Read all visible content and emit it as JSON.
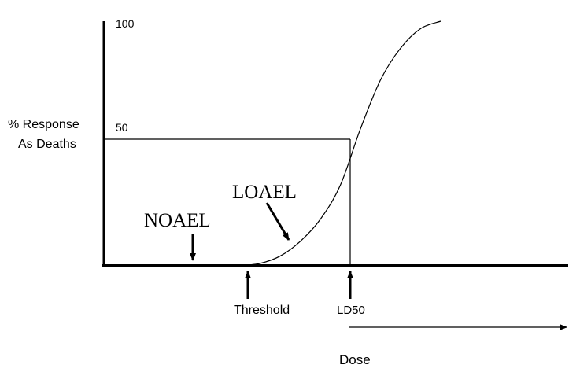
{
  "chart_data": {
    "type": "line",
    "title": "",
    "ylabel_lines": [
      "% Response",
      "As Deaths"
    ],
    "xlabel": "Dose",
    "y_ticks": [
      {
        "value": 100,
        "label": "100"
      },
      {
        "value": 50,
        "label": "50"
      }
    ],
    "ylim": [
      0,
      100
    ],
    "series": [
      {
        "x": [
          0.0,
          0.1,
          0.2,
          0.3,
          0.4,
          0.5,
          0.6,
          0.7,
          0.8,
          0.9,
          1.0
        ],
        "values": [
          0,
          1,
          4,
          10,
          19,
          33,
          56,
          76,
          89,
          97,
          100
        ]
      }
    ],
    "annotations": [
      {
        "label": "NOAEL",
        "style": "serif"
      },
      {
        "label": "LOAEL",
        "style": "serif"
      },
      {
        "label": "Threshold",
        "style": "sans"
      },
      {
        "label": "LD50",
        "style": "sans"
      }
    ],
    "colors": {
      "foreground": "#000000",
      "background": "#ffffff"
    }
  }
}
